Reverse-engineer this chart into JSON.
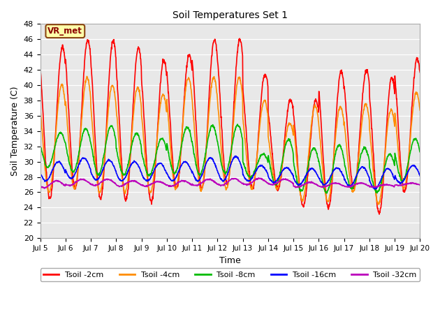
{
  "title": "Soil Temperatures Set 1",
  "xlabel": "Time",
  "ylabel": "Soil Temperature (C)",
  "xlim": [
    0,
    15
  ],
  "ylim": [
    20,
    48
  ],
  "yticks": [
    20,
    22,
    24,
    26,
    28,
    30,
    32,
    34,
    36,
    38,
    40,
    42,
    44,
    46,
    48
  ],
  "xtick_labels": [
    "Jul 5",
    "Jul 6",
    "Jul 7",
    "Jul 8",
    "Jul 9",
    "Jul 10",
    "Jul 11",
    "Jul 12",
    "Jul 13",
    "Jul 14",
    "Jul 15",
    "Jul 16",
    "Jul 17",
    "Jul 18",
    "Jul 19",
    "Jul 20"
  ],
  "xtick_positions": [
    0,
    1,
    2,
    3,
    4,
    5,
    6,
    7,
    8,
    9,
    10,
    11,
    12,
    13,
    14,
    15
  ],
  "colors": {
    "Tsoil_2cm": "#ff0000",
    "Tsoil_4cm": "#ff8c00",
    "Tsoil_8cm": "#00bb00",
    "Tsoil_16cm": "#0000ff",
    "Tsoil_32cm": "#bb00bb"
  },
  "legend_labels": [
    "Tsoil -2cm",
    "Tsoil -4cm",
    "Tsoil -8cm",
    "Tsoil -16cm",
    "Tsoil -32cm"
  ],
  "annotation_text": "VR_met",
  "bg_color": "#e8e8e8",
  "line_width": 1.2,
  "figsize": [
    6.4,
    4.8
  ],
  "dpi": 100,
  "day_peaks_2cm": [
    45.0,
    46.0,
    45.8,
    44.9,
    43.3,
    44.0,
    46.0,
    46.0,
    41.5,
    38.0,
    38.0,
    41.8,
    41.9,
    41.0,
    43.5
  ],
  "day_troughs_2cm": [
    25.2,
    26.5,
    25.2,
    25.0,
    24.7,
    26.5,
    26.5,
    27.0,
    26.5,
    26.4,
    24.2,
    24.0,
    26.5,
    23.3,
    26.0
  ],
  "day_peaks_4cm": [
    40.0,
    41.0,
    40.0,
    39.7,
    38.8,
    41.0,
    41.0,
    41.0,
    38.0,
    35.0,
    37.3,
    37.2,
    37.5,
    36.8,
    39.0
  ],
  "day_troughs_4cm": [
    26.0,
    26.5,
    26.0,
    26.0,
    26.0,
    26.5,
    26.3,
    26.5,
    26.5,
    26.5,
    25.0,
    24.8,
    26.0,
    24.5,
    26.5
  ],
  "day_peaks_8cm": [
    33.8,
    34.3,
    34.7,
    33.7,
    33.0,
    34.5,
    34.7,
    34.8,
    31.0,
    32.9,
    31.8,
    32.2,
    31.8,
    31.0,
    33.0
  ],
  "day_troughs_8cm": [
    29.3,
    28.7,
    28.3,
    28.3,
    28.2,
    28.5,
    28.3,
    28.5,
    28.0,
    27.0,
    26.2,
    26.0,
    26.5,
    26.0,
    27.5
  ],
  "day_peaks_16cm": [
    30.0,
    30.5,
    30.2,
    30.0,
    29.8,
    30.0,
    30.5,
    30.7,
    29.5,
    29.2,
    29.1,
    29.2,
    29.3,
    29.1,
    29.5
  ],
  "day_troughs_16cm": [
    27.5,
    27.8,
    27.6,
    27.5,
    27.5,
    27.5,
    27.5,
    27.5,
    27.5,
    27.3,
    27.0,
    27.0,
    26.8,
    26.5,
    27.2
  ],
  "day_peaks_32cm": [
    27.5,
    27.7,
    27.7,
    27.5,
    27.4,
    27.5,
    27.7,
    27.8,
    27.8,
    27.7,
    27.3,
    27.2,
    27.2,
    27.0,
    27.2
  ],
  "day_troughs_32cm": [
    26.6,
    26.9,
    26.9,
    26.8,
    26.8,
    26.8,
    26.9,
    26.9,
    27.0,
    27.0,
    26.7,
    26.7,
    26.7,
    26.7,
    26.9
  ]
}
